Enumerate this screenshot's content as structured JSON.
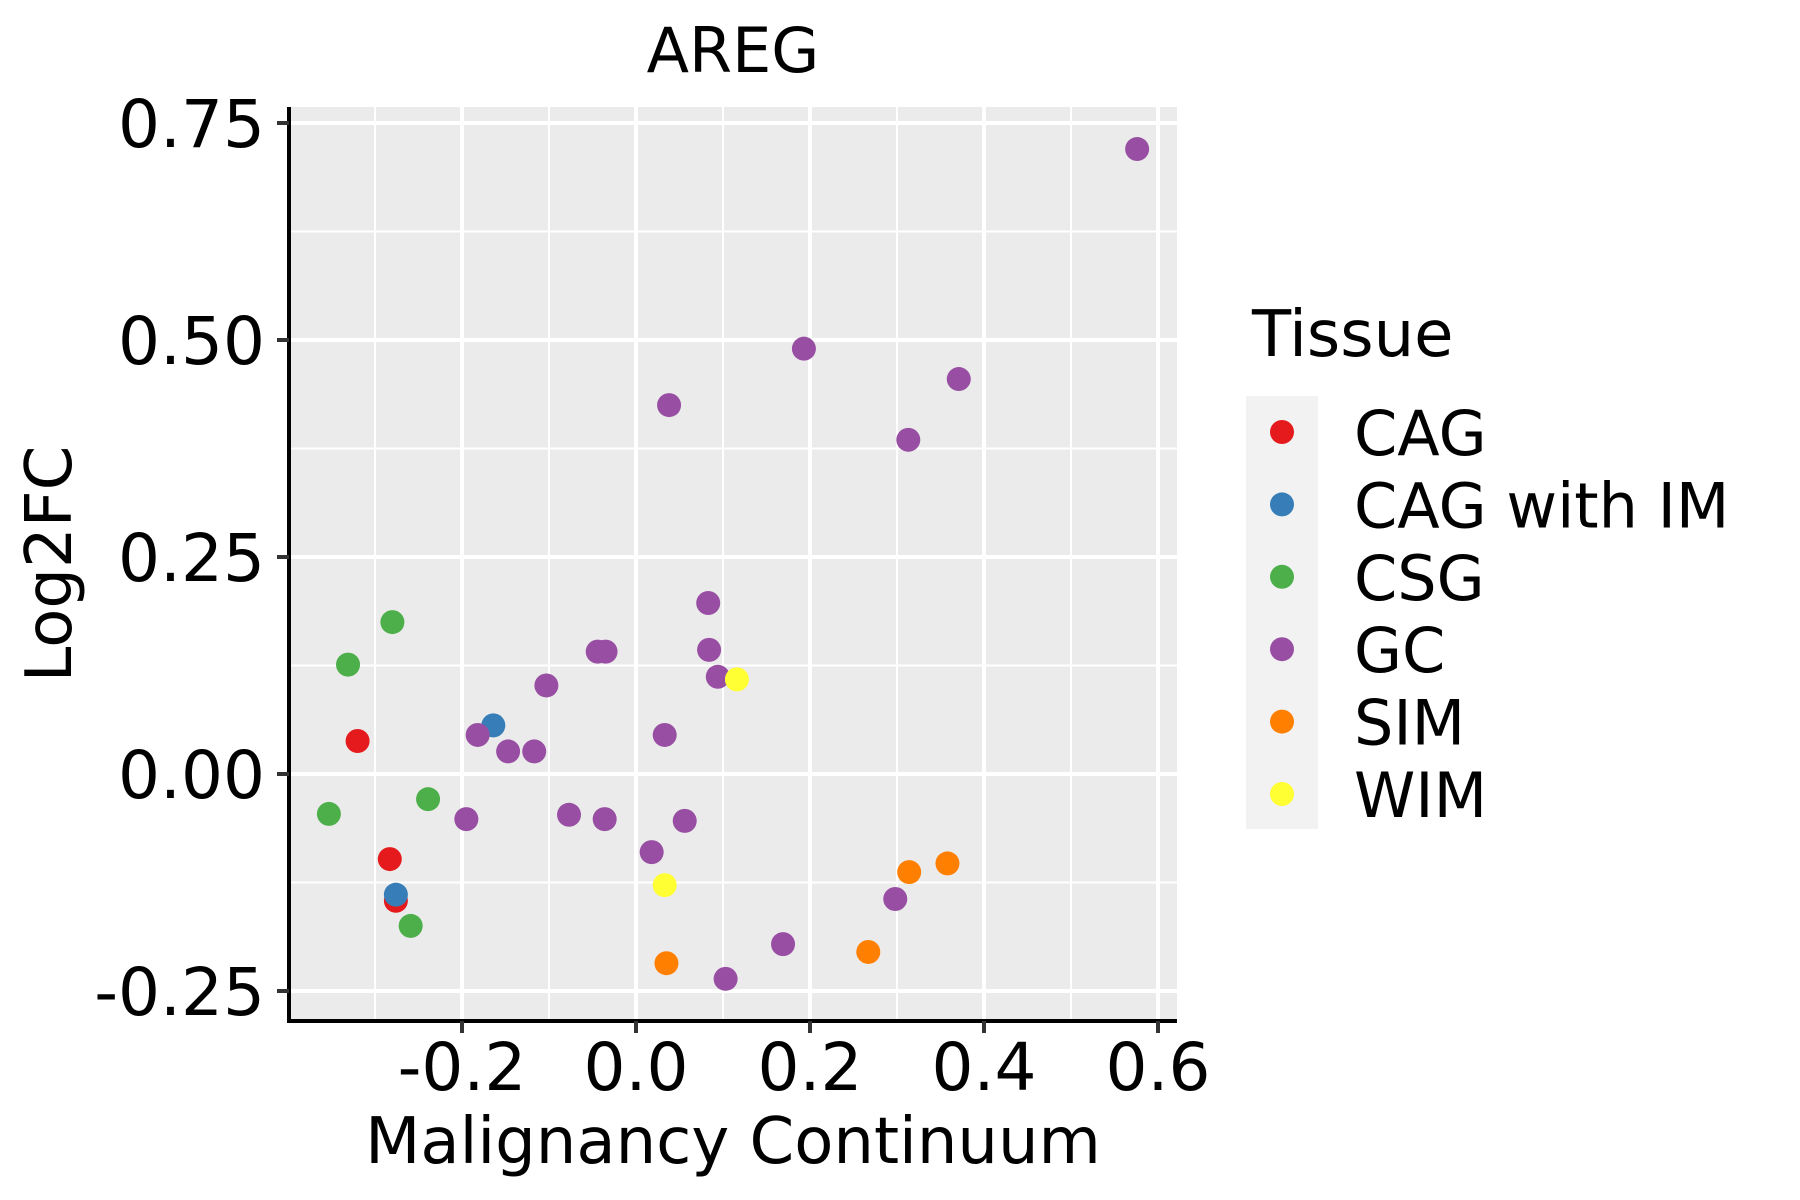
{
  "chart_data": {
    "type": "scatter",
    "title": "AREG",
    "xlabel": "Malignancy Continuum",
    "ylabel": "Log2FC",
    "xlim": [
      -0.375,
      0.625
    ],
    "ylim": [
      -0.275,
      0.77
    ],
    "x_major_ticks": [
      -0.2,
      0.0,
      0.2,
      0.4,
      0.6
    ],
    "x_tick_labels": [
      "-0.2",
      "0.0",
      "0.2",
      "0.4",
      "0.6"
    ],
    "x_minor_ticks": [
      -0.3,
      -0.1,
      0.1,
      0.3,
      0.5
    ],
    "y_major_ticks": [
      -0.25,
      0.0,
      0.25,
      0.5,
      0.75
    ],
    "y_tick_labels": [
      "-0.25",
      "0.00",
      "0.25",
      "0.50",
      "0.75"
    ],
    "y_minor_ticks": [
      -0.125,
      0.125,
      0.375,
      0.625
    ],
    "grid": true,
    "legend": {
      "title": "Tissue",
      "position": "right",
      "entries": [
        {
          "name": "CAG",
          "color": "#E41A1C"
        },
        {
          "name": "CAG with IM",
          "color": "#377EB8"
        },
        {
          "name": "CSG",
          "color": "#4DAF4A"
        },
        {
          "name": "GC",
          "color": "#984EA3"
        },
        {
          "name": "SIM",
          "color": "#FF7F00"
        },
        {
          "name": "WIM",
          "color": "#FFFF33"
        }
      ]
    },
    "series": [
      {
        "name": "CAG",
        "color": "#E41A1C",
        "points": [
          {
            "x": -0.32,
            "y": 0.038
          },
          {
            "x": -0.283,
            "y": -0.098
          },
          {
            "x": -0.276,
            "y": -0.146
          }
        ]
      },
      {
        "name": "CAG with IM",
        "color": "#377EB8",
        "points": [
          {
            "x": -0.164,
            "y": 0.056
          },
          {
            "x": -0.276,
            "y": -0.139
          }
        ]
      },
      {
        "name": "CSG",
        "color": "#4DAF4A",
        "points": [
          {
            "x": -0.28,
            "y": 0.175
          },
          {
            "x": -0.331,
            "y": 0.126
          },
          {
            "x": -0.353,
            "y": -0.046
          },
          {
            "x": -0.239,
            "y": -0.029
          },
          {
            "x": -0.259,
            "y": -0.175
          }
        ]
      },
      {
        "name": "GC",
        "color": "#984EA3",
        "points": [
          {
            "x": 0.576,
            "y": 0.72
          },
          {
            "x": 0.193,
            "y": 0.49
          },
          {
            "x": 0.371,
            "y": 0.455
          },
          {
            "x": 0.038,
            "y": 0.425
          },
          {
            "x": 0.313,
            "y": 0.385
          },
          {
            "x": 0.083,
            "y": 0.197
          },
          {
            "x": 0.084,
            "y": 0.143
          },
          {
            "x": -0.044,
            "y": 0.141
          },
          {
            "x": -0.035,
            "y": 0.141
          },
          {
            "x": 0.094,
            "y": 0.112
          },
          {
            "x": -0.103,
            "y": 0.102
          },
          {
            "x": -0.182,
            "y": 0.045
          },
          {
            "x": 0.033,
            "y": 0.045
          },
          {
            "x": -0.147,
            "y": 0.026
          },
          {
            "x": -0.117,
            "y": 0.026
          },
          {
            "x": -0.195,
            "y": -0.052
          },
          {
            "x": -0.077,
            "y": -0.047
          },
          {
            "x": -0.036,
            "y": -0.052
          },
          {
            "x": 0.056,
            "y": -0.054
          },
          {
            "x": 0.018,
            "y": -0.09
          },
          {
            "x": 0.298,
            "y": -0.144
          },
          {
            "x": 0.169,
            "y": -0.196
          },
          {
            "x": 0.103,
            "y": -0.236
          }
        ]
      },
      {
        "name": "SIM",
        "color": "#FF7F00",
        "points": [
          {
            "x": 0.358,
            "y": -0.103
          },
          {
            "x": 0.314,
            "y": -0.113
          },
          {
            "x": 0.267,
            "y": -0.205
          },
          {
            "x": 0.035,
            "y": -0.218
          }
        ]
      },
      {
        "name": "WIM",
        "color": "#FFFF33",
        "points": [
          {
            "x": 0.116,
            "y": 0.109
          },
          {
            "x": 0.033,
            "y": -0.128
          }
        ]
      }
    ]
  },
  "colors": {
    "panel_background": "#EBEBEB",
    "grid": "#FFFFFF",
    "legend_key_background": "#F2F2F2",
    "axis": "#000000"
  }
}
